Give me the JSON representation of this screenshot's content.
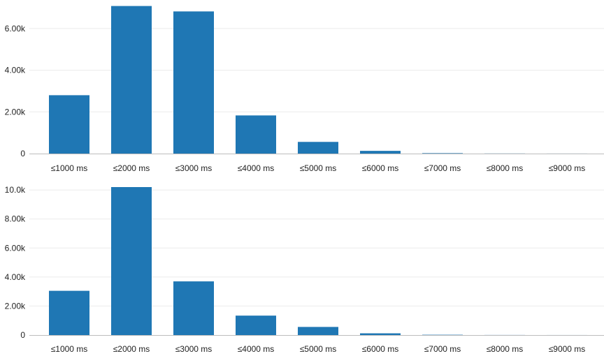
{
  "colors": {
    "bar": "#1f77b4",
    "grid": "#ebebeb",
    "axis": "#bdbdbd",
    "text": "#222222"
  },
  "chart_data": [
    {
      "type": "bar",
      "categories": [
        "≤1000 ms",
        "≤2000 ms",
        "≤3000 ms",
        "≤4000 ms",
        "≤5000 ms",
        "≤6000 ms",
        "≤7000 ms",
        "≤8000 ms",
        "≤9000 ms"
      ],
      "values": [
        2800,
        7080,
        6820,
        1830,
        560,
        130,
        20,
        5,
        2
      ],
      "yticks": [
        0,
        2000,
        4000,
        6000
      ],
      "ytick_labels": [
        "0",
        "2.00k",
        "4.00k",
        "6.00k"
      ],
      "ylim": [
        0,
        7100
      ],
      "grid": true
    },
    {
      "type": "bar",
      "categories": [
        "≤1000 ms",
        "≤2000 ms",
        "≤3000 ms",
        "≤4000 ms",
        "≤5000 ms",
        "≤6000 ms",
        "≤7000 ms",
        "≤8000 ms",
        "≤9000 ms"
      ],
      "values": [
        3050,
        10200,
        3700,
        1340,
        560,
        120,
        20,
        5,
        2
      ],
      "yticks": [
        0,
        2000,
        4000,
        6000,
        8000,
        10000
      ],
      "ytick_labels": [
        "0",
        "2.00k",
        "4.00k",
        "6.00k",
        "8.00k",
        "10.0k"
      ],
      "ylim": [
        0,
        10200
      ],
      "grid": true
    }
  ]
}
